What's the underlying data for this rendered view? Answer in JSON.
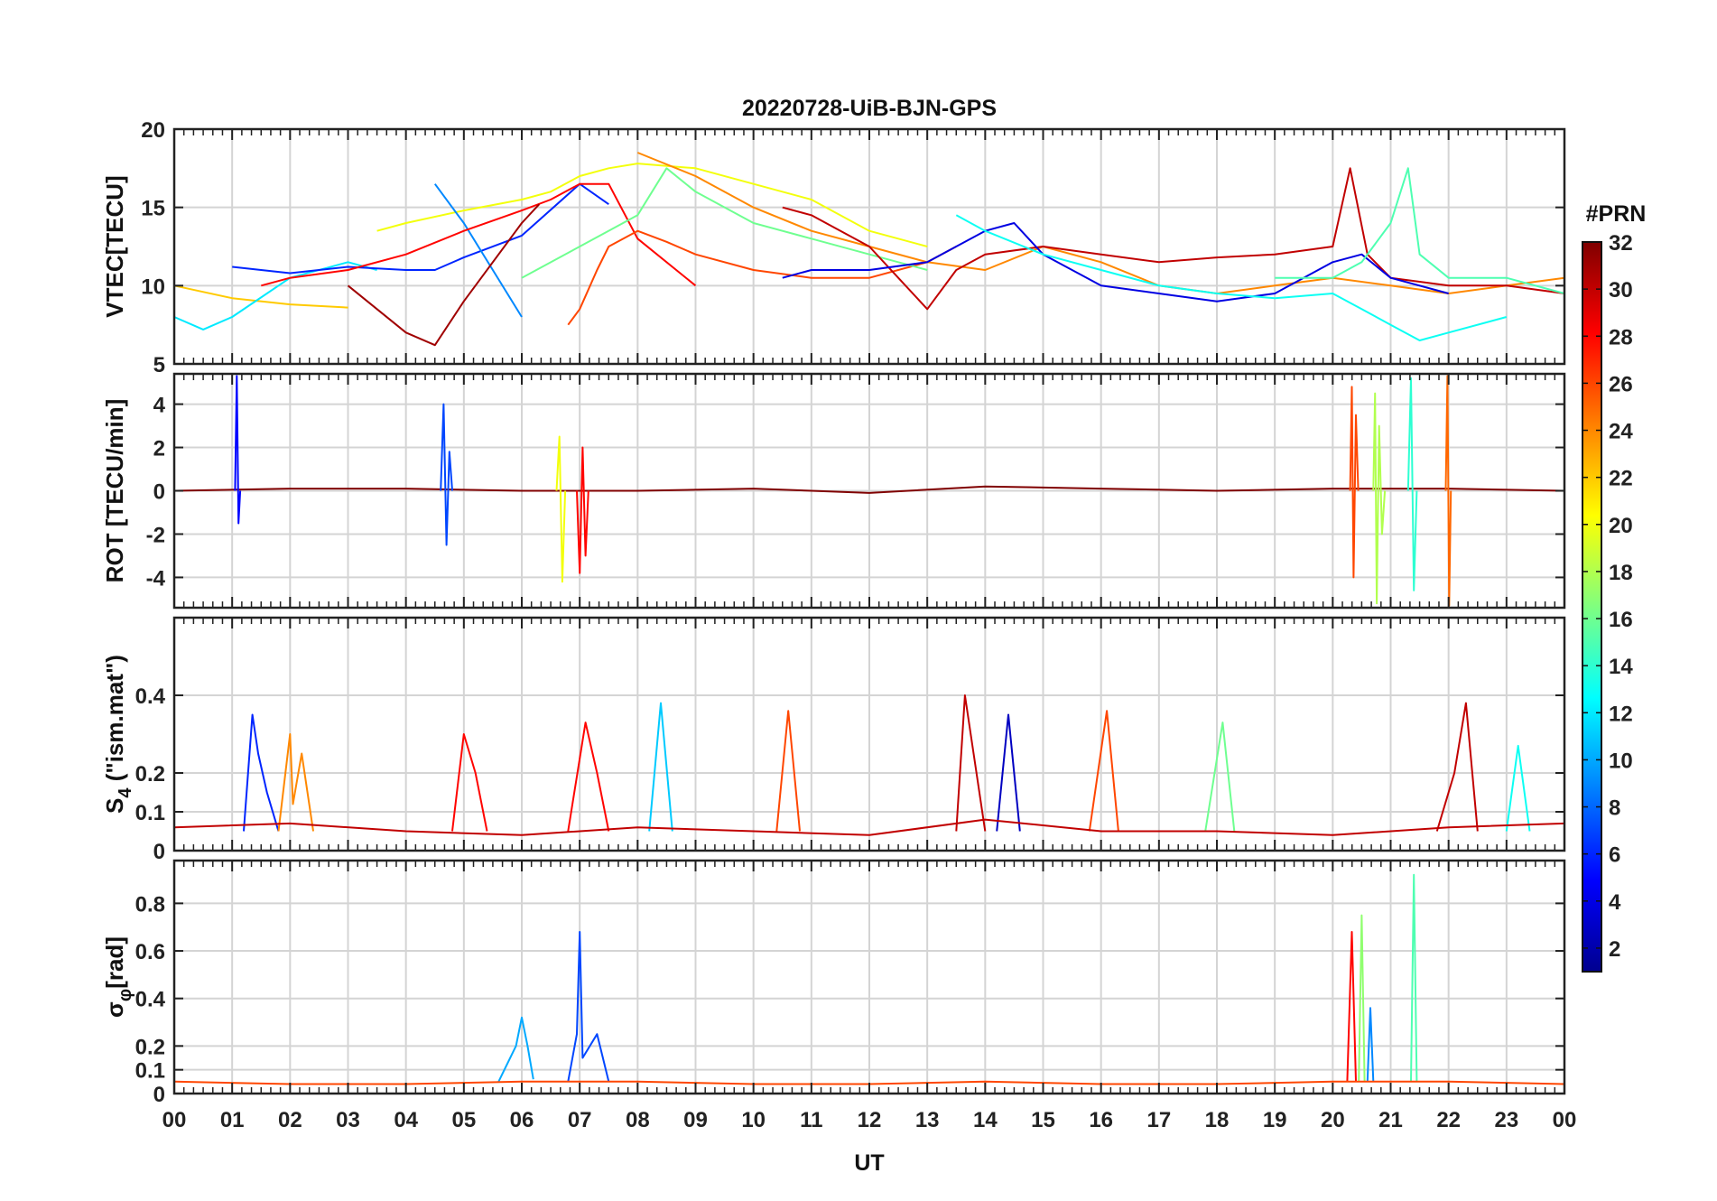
{
  "chart_data": {
    "type": "line",
    "title": "20220728-UiB-BJN-GPS",
    "xlabel": "UT",
    "x_ticks": [
      "00",
      "01",
      "02",
      "03",
      "04",
      "05",
      "06",
      "07",
      "08",
      "09",
      "10",
      "11",
      "12",
      "13",
      "14",
      "15",
      "16",
      "17",
      "18",
      "19",
      "20",
      "21",
      "22",
      "23",
      "00"
    ],
    "xlim": [
      0,
      24
    ],
    "grid": true,
    "colorbar": {
      "label": "#PRN",
      "range": [
        1,
        32
      ],
      "ticks": [
        2,
        4,
        6,
        8,
        10,
        12,
        14,
        16,
        18,
        20,
        22,
        24,
        26,
        28,
        30,
        32
      ],
      "colormap": "jet"
    },
    "panels": [
      {
        "id": "vtec",
        "ylabel": "VTEC[TECU]",
        "ylim": [
          5,
          20
        ],
        "y_ticks": [
          5,
          10,
          15,
          20
        ],
        "y_tick_labels": [
          "5",
          "10",
          "15",
          "20"
        ],
        "series": [
          {
            "prn": 22,
            "x": [
              0,
              1,
              2,
              3
            ],
            "y": [
              10,
              9.2,
              8.8,
              8.6
            ]
          },
          {
            "prn": 12,
            "x": [
              0,
              0.5,
              1,
              2,
              3,
              3.5
            ],
            "y": [
              8,
              7.2,
              8,
              10.5,
              11.5,
              11
            ]
          },
          {
            "prn": 6,
            "x": [
              1,
              2,
              3,
              4,
              4.5,
              5,
              6,
              7,
              7.5
            ],
            "y": [
              11.2,
              10.8,
              11.2,
              11,
              11,
              11.8,
              13.2,
              16.5,
              15.2
            ]
          },
          {
            "prn": 20,
            "x": [
              3.5,
              4,
              5,
              6,
              6.5,
              7,
              7.5,
              8,
              9,
              10,
              11,
              12,
              13
            ],
            "y": [
              13.5,
              14,
              14.8,
              15.5,
              16,
              17,
              17.5,
              17.8,
              17.5,
              16.5,
              15.5,
              13.5,
              12.5
            ]
          },
          {
            "prn": 9,
            "x": [
              4.5,
              5,
              5.5,
              6
            ],
            "y": [
              16.5,
              14,
              11,
              8
            ]
          },
          {
            "prn": 28,
            "x": [
              1.5,
              2,
              3,
              4,
              5,
              6,
              6.5,
              7,
              7.5,
              8,
              9
            ],
            "y": [
              10,
              10.5,
              11,
              12,
              13.5,
              14.8,
              15.5,
              16.5,
              16.5,
              13,
              10
            ]
          },
          {
            "prn": 31,
            "x": [
              3,
              4,
              4.5,
              5,
              6,
              6.3
            ],
            "y": [
              10,
              7,
              6.2,
              9,
              14,
              15.2
            ]
          },
          {
            "prn": 26,
            "x": [
              6.8,
              7,
              7.3,
              7.5,
              8,
              8.5,
              9,
              10,
              11,
              12,
              13,
              13.5
            ],
            "y": [
              7.5,
              8.5,
              11,
              12.5,
              13.5,
              12.8,
              12,
              11,
              10.5,
              10.5,
              11.5,
              12.5
            ]
          },
          {
            "prn": 16,
            "x": [
              6,
              7,
              8,
              8.5,
              9,
              10,
              11,
              12,
              13
            ],
            "y": [
              10.5,
              12.5,
              14.5,
              17.5,
              16,
              14,
              13,
              12,
              11
            ]
          },
          {
            "prn": 24,
            "x": [
              8,
              9,
              10,
              11,
              12,
              13,
              14,
              15,
              16,
              17,
              18,
              19,
              20,
              21,
              22,
              23,
              24
            ],
            "y": [
              18.5,
              17,
              15,
              13.5,
              12.5,
              11.5,
              11,
              12.5,
              11.5,
              10,
              9.5,
              10,
              10.5,
              10,
              9.5,
              10,
              10.5
            ]
          },
          {
            "prn": 30,
            "x": [
              10.5,
              11,
              12,
              12.5,
              13,
              13.5,
              14,
              15,
              16,
              17,
              18,
              19,
              20,
              20.3,
              20.6,
              21,
              22,
              23,
              24
            ],
            "y": [
              15,
              14.5,
              12.5,
              10.5,
              8.5,
              11,
              12,
              12.5,
              12,
              11.5,
              11.8,
              12,
              12.5,
              17.5,
              12,
              10.5,
              10,
              10,
              9.5
            ]
          },
          {
            "prn": 4,
            "x": [
              10.5,
              11,
              12,
              13,
              14,
              14.5,
              15,
              16,
              17,
              18,
              19,
              20,
              20.5,
              21,
              22
            ],
            "y": [
              10.5,
              11,
              11,
              11.5,
              13.5,
              14,
              12,
              10,
              9.5,
              9,
              9.5,
              11.5,
              12,
              10.5,
              9.5
            ]
          },
          {
            "prn": 13,
            "x": [
              13.5,
              14,
              15,
              16,
              17,
              18,
              19,
              20,
              20.5,
              21,
              21.5,
              22,
              23
            ],
            "y": [
              14.5,
              13.5,
              12,
              11,
              10,
              9.5,
              9.2,
              9.5,
              8.5,
              7.5,
              6.5,
              7,
              8
            ]
          },
          {
            "prn": 15,
            "x": [
              19,
              20,
              20.5,
              21,
              21.3,
              21.5,
              22,
              23,
              24
            ],
            "y": [
              10.5,
              10.5,
              11.5,
              14,
              17.5,
              12,
              10.5,
              10.5,
              9.5
            ]
          }
        ]
      },
      {
        "id": "rot",
        "ylabel": "ROT [TECU/min]",
        "ylim": [
          -5.4,
          5.4
        ],
        "y_ticks": [
          -4,
          -2,
          0,
          2,
          4
        ],
        "y_tick_labels": [
          "-4",
          "-2",
          "0",
          "2",
          "4"
        ],
        "series": [
          {
            "prn": 32,
            "x": [
              0,
              2,
              4,
              6,
              8,
              10,
              12,
              14,
              16,
              18,
              20,
              22,
              24
            ],
            "y": [
              0,
              0.1,
              0.1,
              0,
              0,
              0.1,
              -0.1,
              0.2,
              0.1,
              0,
              0.1,
              0.1,
              0
            ]
          },
          {
            "prn": 5,
            "x": [
              1.05,
              1.08,
              1.11,
              1.14
            ],
            "y": [
              0,
              5.3,
              -1.5,
              0
            ]
          },
          {
            "prn": 7,
            "x": [
              4.6,
              4.65,
              4.7,
              4.75,
              4.8
            ],
            "y": [
              0,
              4,
              -2.5,
              1.8,
              0
            ]
          },
          {
            "prn": 20,
            "x": [
              6.6,
              6.65,
              6.7,
              6.75
            ],
            "y": [
              0,
              2.5,
              -4.2,
              0
            ]
          },
          {
            "prn": 28,
            "x": [
              6.95,
              7,
              7.05,
              7.1,
              7.15
            ],
            "y": [
              0,
              -3.8,
              2,
              -3,
              0
            ]
          },
          {
            "prn": 26,
            "x": [
              20.3,
              20.33,
              20.36,
              20.4,
              20.44
            ],
            "y": [
              0,
              4.8,
              -4,
              3.5,
              0
            ]
          },
          {
            "prn": 18,
            "x": [
              20.7,
              20.73,
              20.76,
              20.8,
              20.85,
              20.9
            ],
            "y": [
              0,
              4.5,
              -5.2,
              3,
              -2,
              0
            ]
          },
          {
            "prn": 14,
            "x": [
              21.3,
              21.35,
              21.4,
              21.45
            ],
            "y": [
              0,
              5.2,
              -4.6,
              0
            ]
          },
          {
            "prn": 25,
            "x": [
              21.95,
              21.98,
              22.01,
              22.04
            ],
            "y": [
              0,
              5.3,
              -5.3,
              0
            ]
          }
        ]
      },
      {
        "id": "s4",
        "ylabel": "S",
        "ylabel_sub": "4",
        "ylabel_tail": " (\"ism.mat\")",
        "ylim": [
          0,
          0.6
        ],
        "y_ticks": [
          0,
          0.1,
          0.2,
          0.4
        ],
        "y_tick_labels": [
          "0",
          "0.1",
          "0.2",
          "0.4"
        ],
        "series": [
          {
            "prn": 6,
            "x": [
              1.2,
              1.35,
              1.45,
              1.6,
              1.8
            ],
            "y": [
              0.05,
              0.35,
              0.25,
              0.15,
              0.05
            ]
          },
          {
            "prn": 24,
            "x": [
              1.8,
              2,
              2.05,
              2.2,
              2.4
            ],
            "y": [
              0.05,
              0.3,
              0.12,
              0.25,
              0.05
            ]
          },
          {
            "prn": 28,
            "x": [
              4.8,
              5,
              5.2,
              5.4
            ],
            "y": [
              0.05,
              0.3,
              0.2,
              0.05
            ]
          },
          {
            "prn": 28,
            "x": [
              6.8,
              7.1,
              7.3,
              7.5
            ],
            "y": [
              0.05,
              0.33,
              0.2,
              0.05
            ]
          },
          {
            "prn": 11,
            "x": [
              8.2,
              8.4,
              8.6
            ],
            "y": [
              0.05,
              0.38,
              0.05
            ]
          },
          {
            "prn": 26,
            "x": [
              10.4,
              10.6,
              10.8
            ],
            "y": [
              0.05,
              0.36,
              0.05
            ]
          },
          {
            "prn": 30,
            "x": [
              13.5,
              13.65,
              13.8,
              14
            ],
            "y": [
              0.05,
              0.4,
              0.25,
              0.05
            ]
          },
          {
            "prn": 3,
            "x": [
              14.2,
              14.4,
              14.6
            ],
            "y": [
              0.05,
              0.35,
              0.05
            ]
          },
          {
            "prn": 26,
            "x": [
              15.8,
              16.1,
              16.3
            ],
            "y": [
              0.05,
              0.36,
              0.05
            ]
          },
          {
            "prn": 16,
            "x": [
              17.8,
              18.1,
              18.3
            ],
            "y": [
              0.05,
              0.33,
              0.05
            ]
          },
          {
            "prn": 30,
            "x": [
              21.8,
              22.1,
              22.3,
              22.5
            ],
            "y": [
              0.05,
              0.2,
              0.38,
              0.05
            ]
          },
          {
            "prn": 13,
            "x": [
              23,
              23.2,
              23.4
            ],
            "y": [
              0.05,
              0.27,
              0.05
            ]
          },
          {
            "prn": 30,
            "x": [
              0,
              2,
              4,
              6,
              8,
              10,
              12,
              14,
              16,
              18,
              20,
              22,
              24
            ],
            "y": [
              0.06,
              0.07,
              0.05,
              0.04,
              0.06,
              0.05,
              0.04,
              0.08,
              0.05,
              0.05,
              0.04,
              0.06,
              0.07
            ]
          }
        ]
      },
      {
        "id": "sigma_phi",
        "ylabel": "σ",
        "ylabel_sub": "φ",
        "ylabel_tail": "[rad]",
        "ylim": [
          0,
          0.98
        ],
        "y_ticks": [
          0,
          0.1,
          0.2,
          0.4,
          0.6,
          0.8
        ],
        "y_tick_labels": [
          "0",
          "0.1",
          "0.2",
          "0.4",
          "0.6",
          "0.8"
        ],
        "series": [
          {
            "prn": 10,
            "x": [
              5.6,
              5.9,
              6,
              6.1,
              6.2
            ],
            "y": [
              0.05,
              0.2,
              0.32,
              0.2,
              0.06
            ]
          },
          {
            "prn": 7,
            "x": [
              6.8,
              6.95,
              7,
              7.05,
              7.3,
              7.5
            ],
            "y": [
              0.05,
              0.25,
              0.68,
              0.15,
              0.25,
              0.05
            ]
          },
          {
            "prn": 28,
            "x": [
              20.25,
              20.33,
              20.4
            ],
            "y": [
              0.05,
              0.68,
              0.05
            ]
          },
          {
            "prn": 17,
            "x": [
              20.45,
              20.5,
              20.55
            ],
            "y": [
              0.05,
              0.75,
              0.05
            ]
          },
          {
            "prn": 9,
            "x": [
              20.6,
              20.65,
              20.7
            ],
            "y": [
              0.05,
              0.36,
              0.05
            ]
          },
          {
            "prn": 15,
            "x": [
              21.35,
              21.4,
              21.45
            ],
            "y": [
              0.05,
              0.92,
              0.05
            ]
          },
          {
            "prn": 26,
            "x": [
              0,
              2,
              4,
              6,
              8,
              10,
              12,
              14,
              16,
              18,
              20,
              22,
              24
            ],
            "y": [
              0.05,
              0.04,
              0.04,
              0.05,
              0.05,
              0.04,
              0.04,
              0.05,
              0.04,
              0.04,
              0.05,
              0.05,
              0.04
            ]
          }
        ]
      }
    ]
  }
}
